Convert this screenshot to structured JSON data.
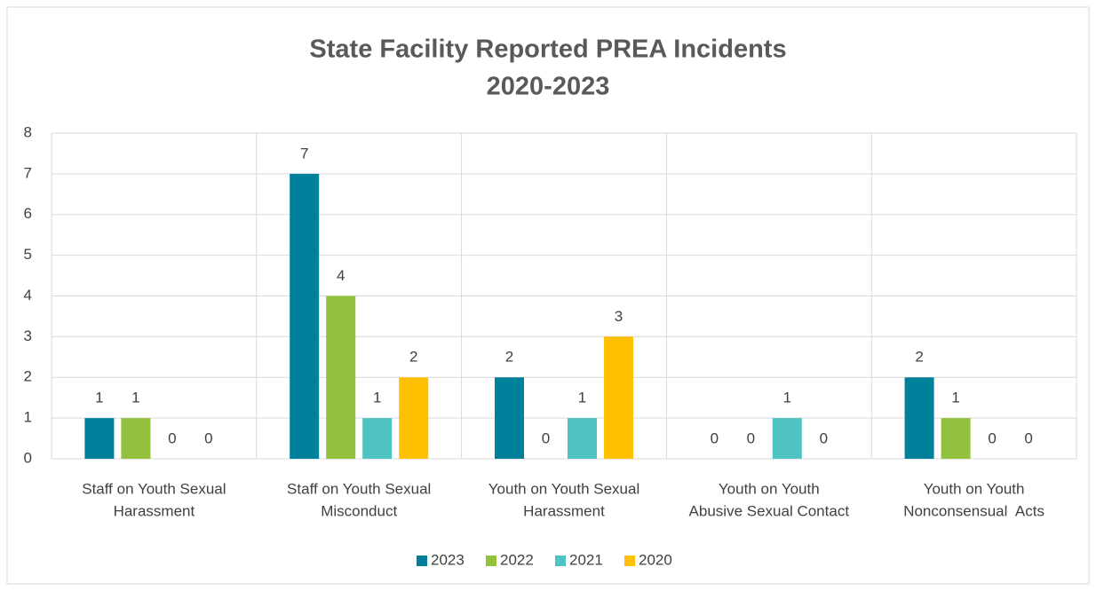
{
  "chart_data": {
    "type": "bar",
    "title": [
      "State Facility Reported PREA Incidents",
      "2020-2023"
    ],
    "categories": [
      [
        "Staff on Youth Sexual",
        "Harassment"
      ],
      [
        "Staff on Youth Sexual",
        "Misconduct"
      ],
      [
        "Youth on Youth Sexual",
        "Harassment"
      ],
      [
        "Youth on Youth",
        "Abusive Sexual Contact"
      ],
      [
        "Youth on Youth",
        "Nonconsensual  Acts"
      ]
    ],
    "series": [
      {
        "name": "2023",
        "color": "#00819b",
        "values": [
          1,
          7,
          2,
          0,
          2
        ]
      },
      {
        "name": "2022",
        "color": "#92c13e",
        "values": [
          1,
          4,
          0,
          0,
          1
        ]
      },
      {
        "name": "2021",
        "color": "#4fc3c3",
        "values": [
          0,
          1,
          1,
          1,
          0
        ]
      },
      {
        "name": "2020",
        "color": "#ffc000",
        "values": [
          0,
          2,
          3,
          0,
          0
        ]
      }
    ],
    "ylim": [
      0,
      8
    ],
    "yticks": [
      0,
      1,
      2,
      3,
      4,
      5,
      6,
      7,
      8
    ],
    "grid": true,
    "legend": "bottom"
  }
}
